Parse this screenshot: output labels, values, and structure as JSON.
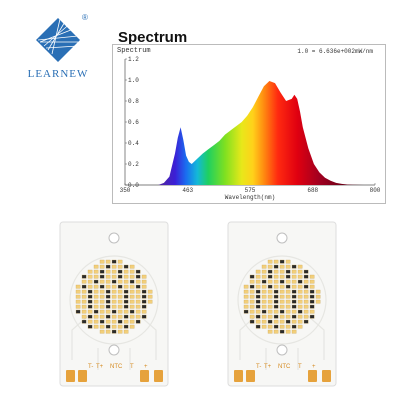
{
  "brand": {
    "name": "LEARNEW",
    "mark": "®",
    "accent": "#2a6fb5"
  },
  "heading": "Spectrum",
  "chart_data": {
    "type": "area",
    "title": "Spectrum",
    "annotation": "1.0 = 6.636e+002mW/nm",
    "xlabel": "Wavelength(nm)",
    "ylabel": "",
    "xlim": [
      350,
      800
    ],
    "ylim": [
      0,
      1.2
    ],
    "x_ticks": [
      350,
      463,
      575,
      688,
      800
    ],
    "y_ticks": [
      0.0,
      0.2,
      0.4,
      0.6,
      0.8,
      1.0,
      1.2
    ],
    "y_tick_labels": [
      "0.0",
      "0.2",
      "0.4",
      "0.6",
      "0.8",
      "1.0",
      "1.2"
    ],
    "grid": false,
    "fill": "visible-spectrum gradient",
    "x": [
      400,
      410,
      420,
      430,
      440,
      445,
      450,
      455,
      460,
      465,
      470,
      480,
      490,
      500,
      510,
      520,
      530,
      540,
      550,
      560,
      570,
      580,
      590,
      600,
      610,
      620,
      630,
      640,
      650,
      655,
      660,
      665,
      670,
      680,
      690,
      700,
      710,
      720,
      730,
      740,
      750,
      760,
      770,
      780
    ],
    "values": [
      0,
      0,
      0.02,
      0.08,
      0.3,
      0.45,
      0.55,
      0.43,
      0.28,
      0.22,
      0.2,
      0.25,
      0.3,
      0.34,
      0.38,
      0.42,
      0.48,
      0.52,
      0.56,
      0.6,
      0.66,
      0.74,
      0.84,
      0.94,
      0.99,
      0.97,
      0.88,
      0.8,
      0.82,
      0.86,
      0.82,
      0.7,
      0.55,
      0.35,
      0.2,
      0.12,
      0.07,
      0.04,
      0.02,
      0.01,
      0.005,
      0.002,
      0.001,
      0
    ]
  },
  "boards": [
    {
      "pad_labels": [
        "T-",
        "T+",
        "NTC",
        "T",
        "+"
      ]
    },
    {
      "pad_labels": [
        "T-",
        "T+",
        "NTC",
        "T",
        "+"
      ]
    }
  ]
}
